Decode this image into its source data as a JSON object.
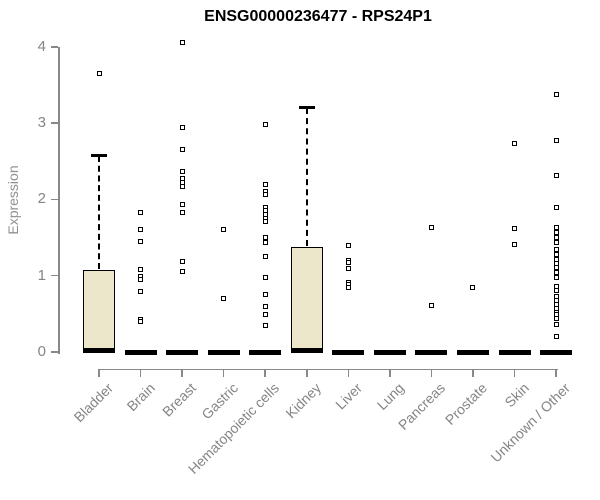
{
  "chart_data": {
    "type": "boxplot",
    "title": "ENSG00000236477 - RPS24P1",
    "ylabel": "Expression",
    "xlabel": "",
    "ylim": [
      0,
      4
    ],
    "yticks": [
      "0",
      "1",
      "2",
      "3",
      "4"
    ],
    "grid": false,
    "legend": "none",
    "box_fill_color": "#ECE6CA",
    "box_border_color": "#000000",
    "axis_color": "#888888",
    "axis_text_color": "#858585",
    "point_style": "open-square",
    "categories": [
      {
        "label": "Bladder",
        "box": {
          "q1": 0,
          "median": 0.02,
          "q3": 1.07,
          "whisker_low": 0,
          "whisker_high": 2.58
        },
        "outliers": [
          3.65
        ]
      },
      {
        "label": "Brain",
        "box": {
          "q1": 0,
          "median": 0,
          "q3": 0,
          "whisker_low": 0,
          "whisker_high": 0
        },
        "outliers": [
          1.83,
          1.6,
          1.45,
          1.08,
          0.99,
          0.95,
          0.79,
          0.42,
          0.4
        ]
      },
      {
        "label": "Breast",
        "box": {
          "q1": 0,
          "median": 0,
          "q3": 0,
          "whisker_low": 0,
          "whisker_high": 0
        },
        "outliers": [
          4.05,
          2.94,
          2.66,
          2.37,
          2.28,
          2.22,
          2.17,
          1.93,
          1.83,
          1.19,
          1.06
        ]
      },
      {
        "label": "Gastric",
        "box": {
          "q1": 0,
          "median": 0,
          "q3": 0,
          "whisker_low": 0,
          "whisker_high": 0
        },
        "outliers": [
          1.6,
          0.7
        ]
      },
      {
        "label": "Hematopoietic cells",
        "box": {
          "q1": 0,
          "median": 0,
          "q3": 0,
          "whisker_low": 0,
          "whisker_high": 0
        },
        "outliers": [
          2.98,
          2.19,
          2.11,
          2.07,
          1.9,
          1.85,
          1.8,
          1.75,
          1.71,
          1.5,
          1.44,
          1.25,
          0.98,
          0.75,
          0.6,
          0.49,
          0.35
        ]
      },
      {
        "label": "Kidney",
        "box": {
          "q1": 0,
          "median": 0.02,
          "q3": 1.37,
          "whisker_low": 0,
          "whisker_high": 3.21
        },
        "outliers": []
      },
      {
        "label": "Liver",
        "box": {
          "q1": 0,
          "median": 0,
          "q3": 0,
          "whisker_low": 0,
          "whisker_high": 0
        },
        "outliers": [
          1.39,
          1.2,
          1.17,
          1.09,
          0.91,
          0.88,
          0.85
        ]
      },
      {
        "label": "Lung",
        "box": {
          "q1": 0,
          "median": 0,
          "q3": 0,
          "whisker_low": 0,
          "whisker_high": 0
        },
        "outliers": []
      },
      {
        "label": "Pancreas",
        "box": {
          "q1": 0,
          "median": 0,
          "q3": 0,
          "whisker_low": 0,
          "whisker_high": 0
        },
        "outliers": [
          1.63,
          0.61
        ]
      },
      {
        "label": "Prostate",
        "box": {
          "q1": 0,
          "median": 0,
          "q3": 0,
          "whisker_low": 0,
          "whisker_high": 0
        },
        "outliers": [
          0.84
        ]
      },
      {
        "label": "Skin",
        "box": {
          "q1": 0,
          "median": 0,
          "q3": 0,
          "whisker_low": 0,
          "whisker_high": 0
        },
        "outliers": [
          2.73,
          1.62,
          1.41
        ]
      },
      {
        "label": "Unknown / Other",
        "box": {
          "q1": 0,
          "median": 0,
          "q3": 0,
          "whisker_low": 0,
          "whisker_high": 0
        },
        "outliers": [
          3.38,
          2.77,
          2.31,
          1.89,
          1.63,
          1.56,
          1.5,
          1.43,
          1.34,
          1.28,
          1.21,
          1.16,
          1.11,
          1.04,
          0.98,
          0.86,
          0.81,
          0.73,
          0.67,
          0.62,
          0.57,
          0.52,
          0.49,
          0.44,
          0.36,
          0.2
        ]
      }
    ]
  }
}
